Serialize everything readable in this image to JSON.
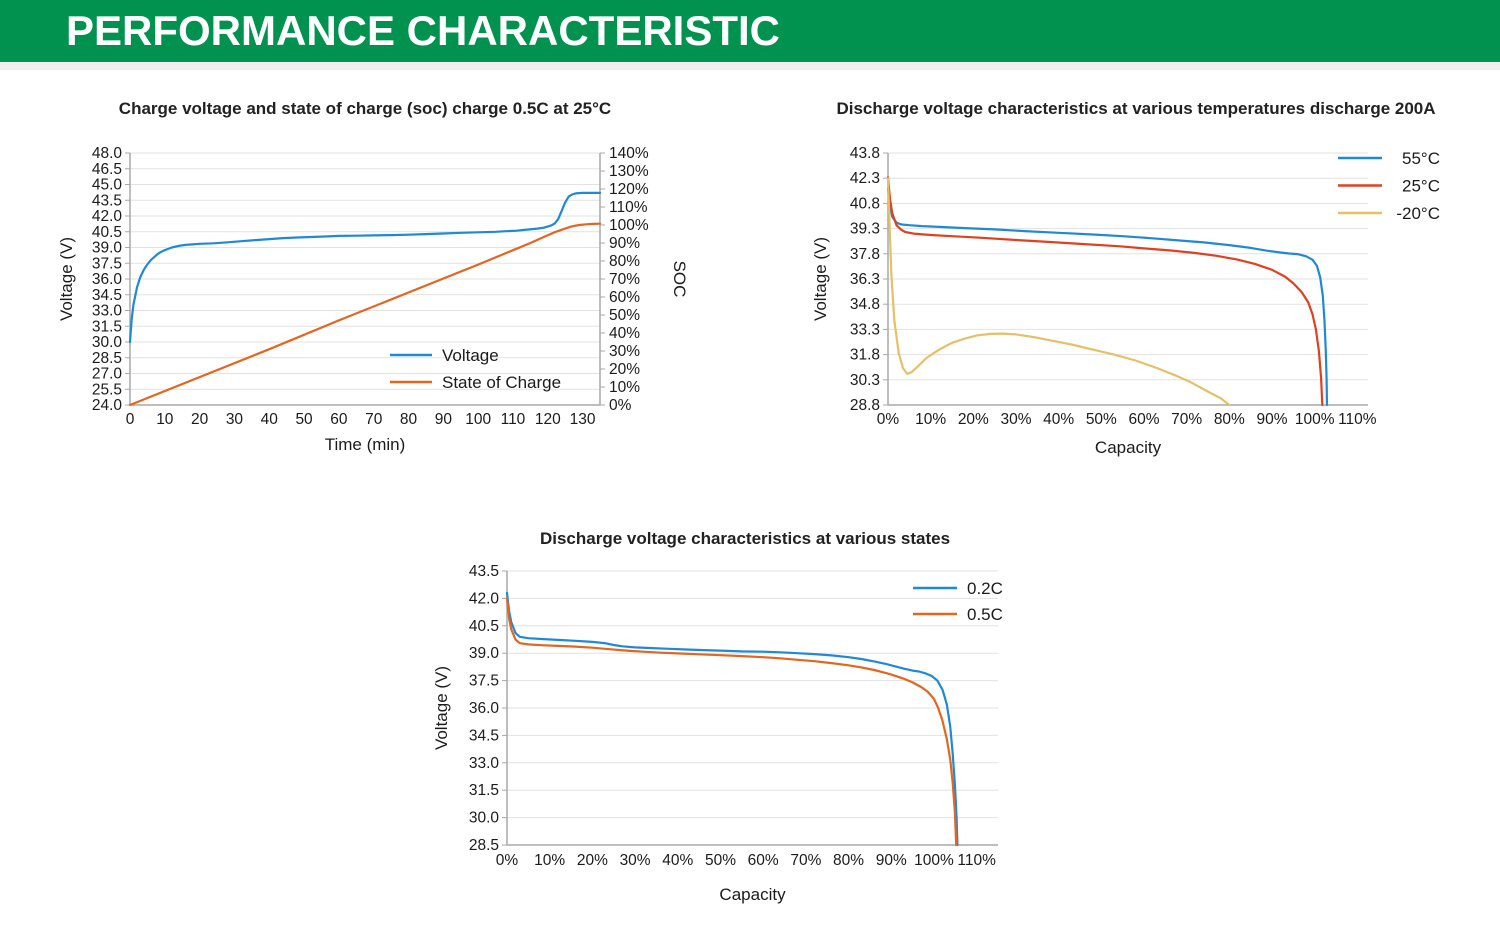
{
  "header": {
    "title": "PERFORMANCE CHARACTERISTIC",
    "bg_color": "#00924e",
    "text_color": "#ffffff"
  },
  "colors": {
    "blue": "#2089d5",
    "orange": "#e2661f",
    "red": "#df411f",
    "yellow": "#e5c068",
    "grid": "#e2e2e2",
    "axis": "#a8a8a8",
    "text": "#1b1b1b"
  },
  "chart_data": [
    {
      "id": "chart1",
      "type": "line",
      "title": "Charge voltage and state of charge (soc) charge 0.5C at 25°C",
      "x_axis": {
        "label": "Time (min)",
        "min": 0,
        "max": 135,
        "tick_step": 10,
        "tick_max": 130,
        "format": "int"
      },
      "y_axis": {
        "label": "Voltage (V)",
        "min": 24.0,
        "max": 48.0,
        "tick_step": 1.5,
        "format": "f1"
      },
      "y_axis_right": {
        "label": "SOC",
        "min": 0,
        "max": 140,
        "tick_step": 10,
        "format": "pct"
      },
      "grid": "horizontal",
      "legend_position": "inside-bottom-right",
      "series": [
        {
          "name": "Voltage",
          "color": "#2089d5",
          "axis": "left",
          "points": [
            [
              0,
              30.0
            ],
            [
              0.5,
              32.2
            ],
            [
              1,
              33.6
            ],
            [
              2,
              35.2
            ],
            [
              3,
              36.2
            ],
            [
              4,
              36.9
            ],
            [
              5,
              37.4
            ],
            [
              6,
              37.8
            ],
            [
              7,
              38.1
            ],
            [
              8,
              38.4
            ],
            [
              9,
              38.6
            ],
            [
              10,
              38.75
            ],
            [
              12,
              39.0
            ],
            [
              14,
              39.15
            ],
            [
              16,
              39.25
            ],
            [
              18,
              39.3
            ],
            [
              20,
              39.35
            ],
            [
              24,
              39.4
            ],
            [
              28,
              39.5
            ],
            [
              32,
              39.6
            ],
            [
              36,
              39.7
            ],
            [
              40,
              39.8
            ],
            [
              44,
              39.9
            ],
            [
              48,
              39.95
            ],
            [
              52,
              40.0
            ],
            [
              56,
              40.05
            ],
            [
              60,
              40.1
            ],
            [
              65,
              40.12
            ],
            [
              70,
              40.15
            ],
            [
              75,
              40.18
            ],
            [
              80,
              40.22
            ],
            [
              85,
              40.28
            ],
            [
              90,
              40.33
            ],
            [
              95,
              40.4
            ],
            [
              100,
              40.45
            ],
            [
              105,
              40.5
            ],
            [
              108,
              40.55
            ],
            [
              111,
              40.6
            ],
            [
              114,
              40.7
            ],
            [
              117,
              40.8
            ],
            [
              119,
              40.9
            ],
            [
              121,
              41.1
            ],
            [
              122,
              41.3
            ],
            [
              123,
              41.7
            ],
            [
              124,
              42.5
            ],
            [
              125,
              43.3
            ],
            [
              126,
              43.85
            ],
            [
              127,
              44.05
            ],
            [
              128,
              44.15
            ],
            [
              130,
              44.2
            ],
            [
              135,
              44.2
            ]
          ]
        },
        {
          "name": "State of Charge",
          "color": "#e2661f",
          "axis": "right",
          "points": [
            [
              0,
              0
            ],
            [
              20,
              15.5
            ],
            [
              40,
              31
            ],
            [
              60,
              47
            ],
            [
              80,
              62.5
            ],
            [
              100,
              78
            ],
            [
              110,
              86
            ],
            [
              115,
              90
            ],
            [
              119,
              93.5
            ],
            [
              122,
              96
            ],
            [
              125,
              98
            ],
            [
              127,
              99.3
            ],
            [
              129,
              100
            ],
            [
              131,
              100.4
            ],
            [
              133,
              100.6
            ],
            [
              135,
              100.7
            ]
          ]
        }
      ]
    },
    {
      "id": "chart2",
      "type": "line",
      "title": "Discharge voltage characteristics at various temperatures discharge 200A",
      "x_axis": {
        "label": "Capacity",
        "min": 0,
        "max": 112.5,
        "tick_step": 10,
        "tick_max": 110,
        "format": "pct"
      },
      "y_axis": {
        "label": "Voltage (V)",
        "min": 28.8,
        "max": 43.8,
        "tick_step": 1.5,
        "format": "f1"
      },
      "grid": "horizontal",
      "legend_position": "top-right",
      "series": [
        {
          "name": "55°C",
          "color": "#2089d5",
          "axis": "left",
          "points": [
            [
              0,
              41.7
            ],
            [
              0.5,
              40.6
            ],
            [
              1,
              40.0
            ],
            [
              2,
              39.65
            ],
            [
              3,
              39.55
            ],
            [
              5,
              39.5
            ],
            [
              8,
              39.45
            ],
            [
              12,
              39.4
            ],
            [
              18,
              39.33
            ],
            [
              25,
              39.25
            ],
            [
              32,
              39.15
            ],
            [
              40,
              39.05
            ],
            [
              48,
              38.95
            ],
            [
              55,
              38.85
            ],
            [
              62,
              38.72
            ],
            [
              68,
              38.6
            ],
            [
              74,
              38.48
            ],
            [
              80,
              38.32
            ],
            [
              85,
              38.15
            ],
            [
              89,
              37.98
            ],
            [
              92,
              37.88
            ],
            [
              94,
              37.82
            ],
            [
              96,
              37.78
            ],
            [
              98,
              37.65
            ],
            [
              99.5,
              37.45
            ],
            [
              100.5,
              37.1
            ],
            [
              101.3,
              36.4
            ],
            [
              101.9,
              35.3
            ],
            [
              102.3,
              33.8
            ],
            [
              102.6,
              32.0
            ],
            [
              102.8,
              30.3
            ],
            [
              102.9,
              28.8
            ]
          ]
        },
        {
          "name": "25°C",
          "color": "#df411f",
          "axis": "left",
          "points": [
            [
              0,
              42.35
            ],
            [
              0.5,
              41.0
            ],
            [
              1,
              40.2
            ],
            [
              2,
              39.5
            ],
            [
              3,
              39.25
            ],
            [
              4,
              39.1
            ],
            [
              6,
              39.0
            ],
            [
              10,
              38.92
            ],
            [
              15,
              38.85
            ],
            [
              22,
              38.75
            ],
            [
              30,
              38.62
            ],
            [
              38,
              38.5
            ],
            [
              46,
              38.38
            ],
            [
              54,
              38.25
            ],
            [
              60,
              38.12
            ],
            [
              66,
              38.0
            ],
            [
              72,
              37.85
            ],
            [
              77,
              37.68
            ],
            [
              82,
              37.45
            ],
            [
              86,
              37.2
            ],
            [
              90,
              36.85
            ],
            [
              93,
              36.45
            ],
            [
              95,
              36.05
            ],
            [
              97,
              35.5
            ],
            [
              98.5,
              34.9
            ],
            [
              99.5,
              34.2
            ],
            [
              100.3,
              33.3
            ],
            [
              101,
              32.0
            ],
            [
              101.5,
              30.4
            ],
            [
              101.8,
              28.8
            ]
          ]
        },
        {
          "name": "-20°C",
          "color": "#e5c068",
          "axis": "left",
          "points": [
            [
              0,
              42.3
            ],
            [
              0.3,
              40.0
            ],
            [
              0.8,
              36.5
            ],
            [
              1.5,
              33.8
            ],
            [
              2.5,
              31.9
            ],
            [
              3.5,
              31.0
            ],
            [
              4.5,
              30.65
            ],
            [
              5.5,
              30.75
            ],
            [
              7,
              31.1
            ],
            [
              9,
              31.6
            ],
            [
              12,
              32.1
            ],
            [
              15,
              32.5
            ],
            [
              18,
              32.75
            ],
            [
              21,
              32.95
            ],
            [
              24,
              33.03
            ],
            [
              27,
              33.05
            ],
            [
              30,
              33.0
            ],
            [
              34,
              32.85
            ],
            [
              38,
              32.65
            ],
            [
              43,
              32.4
            ],
            [
              48,
              32.1
            ],
            [
              53,
              31.8
            ],
            [
              58,
              31.45
            ],
            [
              63,
              31.0
            ],
            [
              67,
              30.6
            ],
            [
              71,
              30.15
            ],
            [
              75,
              29.6
            ],
            [
              78,
              29.2
            ],
            [
              80,
              28.8
            ]
          ]
        }
      ]
    },
    {
      "id": "chart3",
      "type": "line",
      "title": "Discharge voltage characteristics at various states",
      "x_axis": {
        "label": "Capacity",
        "min": 0,
        "max": 115,
        "tick_step": 10,
        "tick_max": 110,
        "format": "pct"
      },
      "y_axis": {
        "label": "Voltage (V)",
        "min": 28.5,
        "max": 43.5,
        "tick_step": 1.5,
        "format": "f1"
      },
      "grid": "horizontal",
      "legend_position": "top-right",
      "series": [
        {
          "name": "0.2C",
          "color": "#2089d5",
          "axis": "left",
          "points": [
            [
              0,
              42.3
            ],
            [
              0.5,
              41.3
            ],
            [
              1,
              40.7
            ],
            [
              2,
              40.1
            ],
            [
              3,
              39.9
            ],
            [
              5,
              39.82
            ],
            [
              8,
              39.78
            ],
            [
              12,
              39.73
            ],
            [
              16,
              39.68
            ],
            [
              20,
              39.62
            ],
            [
              23,
              39.55
            ],
            [
              25,
              39.45
            ],
            [
              27,
              39.38
            ],
            [
              30,
              39.32
            ],
            [
              34,
              39.28
            ],
            [
              38,
              39.24
            ],
            [
              42,
              39.2
            ],
            [
              46,
              39.17
            ],
            [
              50,
              39.14
            ],
            [
              55,
              39.1
            ],
            [
              60,
              39.08
            ],
            [
              64,
              39.05
            ],
            [
              68,
              39.0
            ],
            [
              72,
              38.95
            ],
            [
              76,
              38.88
            ],
            [
              80,
              38.78
            ],
            [
              83,
              38.68
            ],
            [
              86,
              38.55
            ],
            [
              89,
              38.4
            ],
            [
              91,
              38.28
            ],
            [
              93,
              38.15
            ],
            [
              95,
              38.05
            ],
            [
              96.5,
              38.0
            ],
            [
              98,
              37.9
            ],
            [
              99.5,
              37.75
            ],
            [
              100.8,
              37.5
            ],
            [
              102,
              37.0
            ],
            [
              103,
              36.2
            ],
            [
              103.8,
              35.0
            ],
            [
              104.4,
              33.5
            ],
            [
              104.9,
              31.8
            ],
            [
              105.3,
              30.0
            ],
            [
              105.5,
              28.5
            ]
          ]
        },
        {
          "name": "0.5C",
          "color": "#e2661f",
          "axis": "left",
          "points": [
            [
              0,
              42.0
            ],
            [
              0.5,
              40.9
            ],
            [
              1,
              40.3
            ],
            [
              2,
              39.75
            ],
            [
              3,
              39.55
            ],
            [
              5,
              39.48
            ],
            [
              8,
              39.44
            ],
            [
              12,
              39.4
            ],
            [
              16,
              39.36
            ],
            [
              20,
              39.3
            ],
            [
              24,
              39.22
            ],
            [
              28,
              39.14
            ],
            [
              32,
              39.08
            ],
            [
              36,
              39.03
            ],
            [
              40,
              38.99
            ],
            [
              45,
              38.94
            ],
            [
              50,
              38.89
            ],
            [
              55,
              38.84
            ],
            [
              60,
              38.78
            ],
            [
              64,
              38.72
            ],
            [
              68,
              38.64
            ],
            [
              72,
              38.56
            ],
            [
              76,
              38.46
            ],
            [
              80,
              38.34
            ],
            [
              83,
              38.22
            ],
            [
              86,
              38.08
            ],
            [
              89,
              37.9
            ],
            [
              91,
              37.76
            ],
            [
              93,
              37.6
            ],
            [
              95,
              37.4
            ],
            [
              97,
              37.15
            ],
            [
              98.5,
              36.9
            ],
            [
              100,
              36.5
            ],
            [
              101,
              36.0
            ],
            [
              102,
              35.3
            ],
            [
              103,
              34.3
            ],
            [
              103.8,
              33.2
            ],
            [
              104.4,
              31.9
            ],
            [
              104.9,
              30.3
            ],
            [
              105.2,
              28.5
            ]
          ]
        }
      ]
    }
  ]
}
